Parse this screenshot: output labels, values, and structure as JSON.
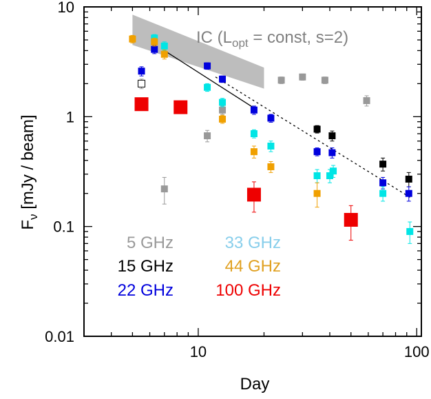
{
  "chart_data": {
    "type": "scatter",
    "xscale": "log",
    "yscale": "log",
    "xlim": [
      3,
      105
    ],
    "ylim": [
      0.01,
      10
    ],
    "xlabel": "Day",
    "ylabel_main": "F",
    "ylabel_sub": "ν",
    "ylabel_rest": " [mJy / beam]",
    "x_ticks": [
      {
        "value": 10,
        "label": "10"
      },
      {
        "value": 100,
        "label": "100"
      }
    ],
    "y_ticks": [
      {
        "value": 0.01,
        "label": "0.01"
      },
      {
        "value": 0.1,
        "label": "0.1"
      },
      {
        "value": 1,
        "label": "1"
      },
      {
        "value": 10,
        "label": "10"
      }
    ],
    "ic_annotation": {
      "text_prefix": "IC (L",
      "text_sub": "opt",
      "text_suffix": " = const, s=2)",
      "band_upper": [
        [
          5.0,
          8.5
        ],
        [
          20.0,
          2.8
        ]
      ],
      "band_lower": [
        [
          5.0,
          4.5
        ],
        [
          20.0,
          1.8
        ]
      ]
    },
    "series": [
      {
        "name": "5 GHz",
        "color": "#999999",
        "marker": "small-square",
        "points": [
          {
            "x": 5.5,
            "y": 2.0,
            "err": 0.2,
            "open": true
          },
          {
            "x": 7.0,
            "y": 0.22,
            "err": 0.06
          },
          {
            "x": 11.0,
            "y": 0.67,
            "err": 0.08
          },
          {
            "x": 12.9,
            "y": 1.15,
            "err": 0.1
          },
          {
            "x": 24.0,
            "y": 2.15,
            "err": 0.15
          },
          {
            "x": 30.0,
            "y": 2.3,
            "err": 0.15
          },
          {
            "x": 38.0,
            "y": 2.15,
            "err": 0.15
          },
          {
            "x": 59.0,
            "y": 1.4,
            "err": 0.15
          }
        ]
      },
      {
        "name": "15 GHz",
        "color": "#000000",
        "marker": "small-square",
        "points": [
          {
            "x": 35.0,
            "y": 0.77,
            "err": 0.06
          },
          {
            "x": 41.0,
            "y": 0.67,
            "err": 0.07
          },
          {
            "x": 70.0,
            "y": 0.37,
            "err": 0.05
          },
          {
            "x": 92.0,
            "y": 0.27,
            "err": 0.04
          }
        ]
      },
      {
        "name": "22 GHz",
        "color": "#0000dd",
        "marker": "small-square",
        "points": [
          {
            "x": 5.5,
            "y": 2.6,
            "err": 0.25
          },
          {
            "x": 6.3,
            "y": 4.1,
            "err": 0.35
          },
          {
            "x": 11.0,
            "y": 2.9,
            "err": 0.2
          },
          {
            "x": 12.9,
            "y": 2.2,
            "err": 0.15
          },
          {
            "x": 18.0,
            "y": 1.15,
            "err": 0.1
          },
          {
            "x": 21.5,
            "y": 0.97,
            "err": 0.08
          },
          {
            "x": 35.0,
            "y": 0.48,
            "err": 0.04
          },
          {
            "x": 41.0,
            "y": 0.47,
            "err": 0.05
          },
          {
            "x": 70.0,
            "y": 0.25,
            "err": 0.03
          },
          {
            "x": 92.0,
            "y": 0.2,
            "err": 0.03
          }
        ]
      },
      {
        "name": "33 GHz",
        "color": "#00e5e5",
        "marker": "small-square",
        "points": [
          {
            "x": 6.3,
            "y": 5.2,
            "err": 0.4
          },
          {
            "x": 7.0,
            "y": 4.4,
            "err": 0.4
          },
          {
            "x": 11.0,
            "y": 1.85,
            "err": 0.15
          },
          {
            "x": 12.9,
            "y": 1.35,
            "err": 0.12
          },
          {
            "x": 18.0,
            "y": 0.7,
            "err": 0.06
          },
          {
            "x": 21.5,
            "y": 0.54,
            "err": 0.06
          },
          {
            "x": 35.0,
            "y": 0.29,
            "err": 0.04
          },
          {
            "x": 40.0,
            "y": 0.29,
            "err": 0.04
          },
          {
            "x": 41.5,
            "y": 0.32,
            "err": 0.04
          },
          {
            "x": 70.0,
            "y": 0.2,
            "err": 0.03
          },
          {
            "x": 93.0,
            "y": 0.09,
            "err": 0.02
          }
        ]
      },
      {
        "name": "44 GHz",
        "color": "#f0a000",
        "marker": "small-square",
        "points": [
          {
            "x": 5.0,
            "y": 5.1,
            "err": 0.4
          },
          {
            "x": 6.3,
            "y": 4.8,
            "err": 0.4
          },
          {
            "x": 7.0,
            "y": 3.7,
            "err": 0.35
          },
          {
            "x": 12.9,
            "y": 0.95,
            "err": 0.08
          },
          {
            "x": 18.0,
            "y": 0.48,
            "err": 0.06
          },
          {
            "x": 21.5,
            "y": 0.35,
            "err": 0.04
          },
          {
            "x": 35.0,
            "y": 0.2,
            "err": 0.05
          }
        ]
      },
      {
        "name": "100 GHz",
        "color": "#ee0000",
        "marker": "big-square",
        "points": [
          {
            "x": 5.5,
            "y": 1.3,
            "err": 0.15
          },
          {
            "x": 8.3,
            "y": 1.22,
            "err": 0.12
          },
          {
            "x": 18.0,
            "y": 0.195,
            "err": 0.06
          },
          {
            "x": 50.0,
            "y": 0.115,
            "err": 0.04
          }
        ]
      }
    ],
    "lines": [
      {
        "style": "solid",
        "points": [
          [
            7.0,
            4.0
          ],
          [
            18.0,
            1.2
          ]
        ]
      },
      {
        "style": "dotted",
        "points": [
          [
            12.0,
            2.3
          ],
          [
            95.0,
            0.18
          ]
        ]
      }
    ],
    "legend": [
      {
        "label": "5 GHz",
        "color": "#999999"
      },
      {
        "label": "33 GHz",
        "color": "#87ceeb"
      },
      {
        "label": "15 GHz",
        "color": "#000000"
      },
      {
        "label": "44 GHz",
        "color": "#e0a020"
      },
      {
        "label": "22 GHz",
        "color": "#0000dd"
      },
      {
        "label": "100 GHz",
        "color": "#ee0000"
      }
    ]
  }
}
